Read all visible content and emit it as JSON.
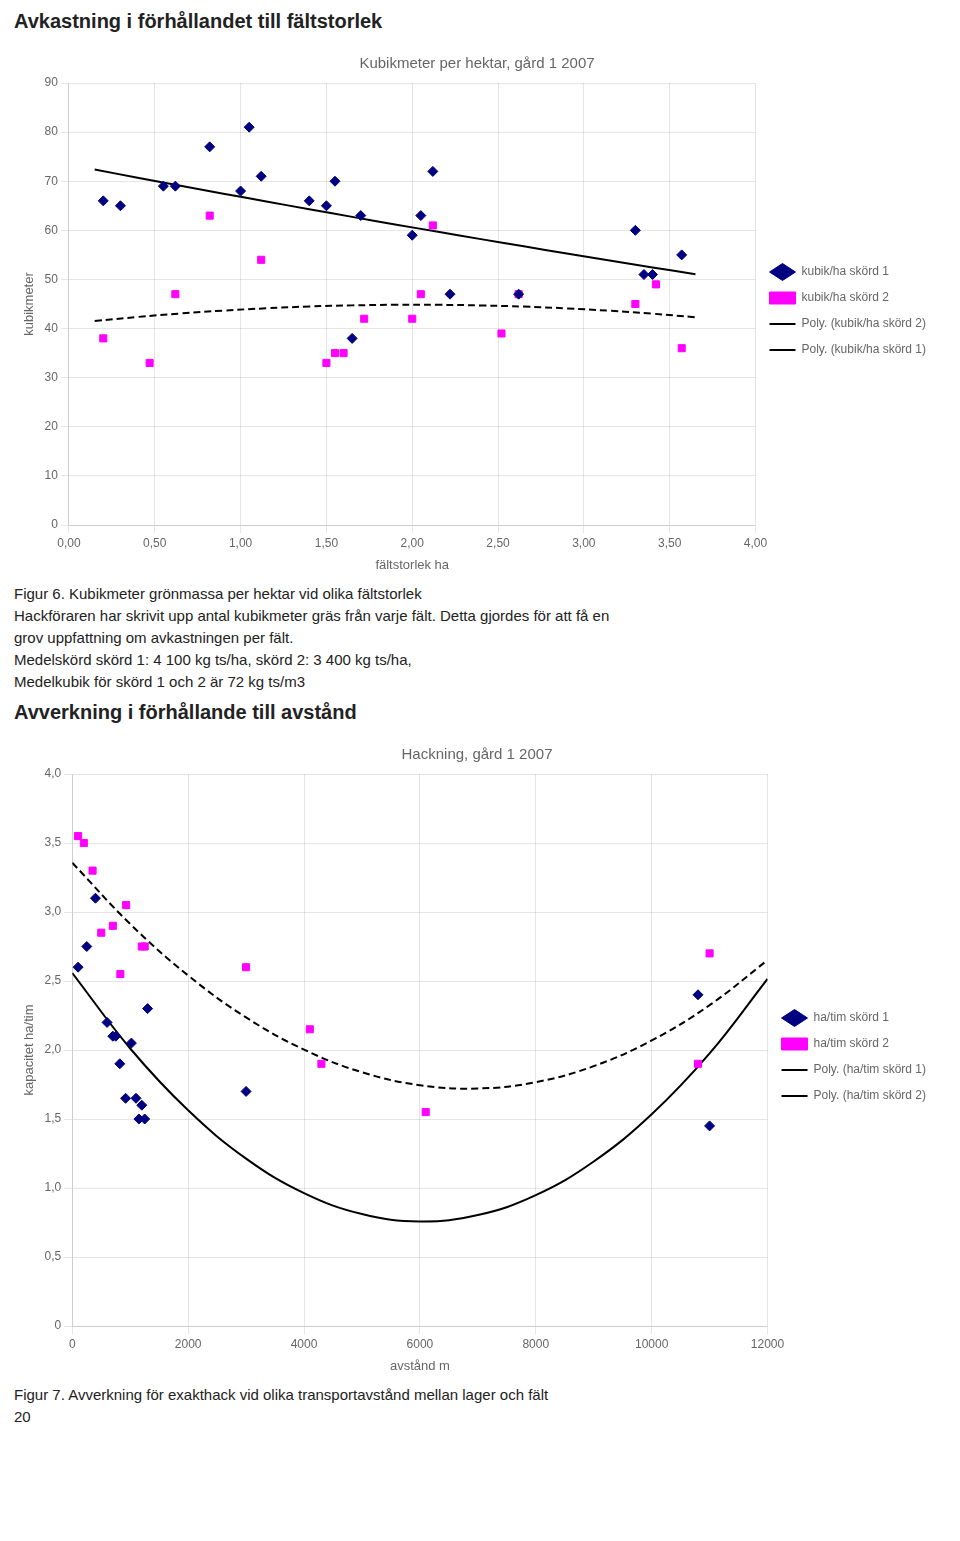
{
  "chart_data": [
    {
      "type": "scatter",
      "title": "Kubikmeter per hektar, gård 1 2007",
      "xlabel": "fältstorlek ha",
      "ylabel": "kubikmeter",
      "xlim": [
        0.0,
        4.0
      ],
      "ylim": [
        0,
        90
      ],
      "xticks": [
        {
          "value": 0.0,
          "label": "0,00"
        },
        {
          "value": 0.5,
          "label": "0,50"
        },
        {
          "value": 1.0,
          "label": "1,00"
        },
        {
          "value": 1.5,
          "label": "1,50"
        },
        {
          "value": 2.0,
          "label": "2,00"
        },
        {
          "value": 2.5,
          "label": "2,50"
        },
        {
          "value": 3.0,
          "label": "3,00"
        },
        {
          "value": 3.5,
          "label": "3,50"
        },
        {
          "value": 4.0,
          "label": "4,00"
        }
      ],
      "yticks": [
        0,
        10,
        20,
        30,
        40,
        50,
        60,
        70,
        80,
        90
      ],
      "grid": true,
      "legend": "right",
      "annotations": [
        "Avkastning i förhållandet till fältstorlek",
        "Figur 6. Kubikmeter grönmassa per hektar vid olika fältstorlek",
        "Hackföraren har skrivit upp antal kubikmeter gräs från varje fält. Detta gjordes för att få en",
        "grov uppfattning om avkastningen per fält.",
        "Medelskörd skörd 1: 4 100 kg ts/ha, skörd 2: 3 400 kg ts/ha,",
        "Medelkubik för skörd 1 och 2 är 72 kg ts/m3"
      ],
      "series": [
        {
          "name": "kubik/ha skörd 1",
          "type": "scatter",
          "marker": "diamond",
          "color": "#000080",
          "x": [
            0.2,
            0.3,
            0.55,
            0.62,
            0.82,
            1.0,
            1.05,
            1.12,
            1.4,
            1.5,
            1.55,
            1.65,
            1.7,
            2.0,
            2.05,
            2.12,
            2.22,
            2.62,
            3.3,
            3.35,
            3.4,
            3.57
          ],
          "values": [
            66,
            65,
            69,
            69,
            77,
            68,
            81,
            71,
            66,
            65,
            70,
            38,
            63,
            59,
            63,
            72,
            47,
            47,
            60,
            51,
            51,
            55
          ]
        },
        {
          "name": "kubik/ha skörd 2",
          "type": "scatter",
          "marker": "square",
          "color": "#FF00FF",
          "x": [
            0.2,
            0.47,
            0.62,
            0.82,
            1.12,
            1.5,
            1.55,
            1.6,
            1.72,
            2.0,
            2.05,
            2.12,
            2.52,
            2.62,
            3.3,
            3.42,
            3.57
          ],
          "values": [
            38,
            33,
            47,
            63,
            54,
            33,
            35,
            35,
            42,
            42,
            47,
            61,
            39,
            47,
            45,
            49,
            36
          ]
        },
        {
          "name": "Poly. (kubik/ha skörd 2)",
          "type": "line",
          "line_style": "dashed",
          "color": "#000000",
          "x": [
            0.15,
            0.4,
            0.65,
            0.9,
            1.15,
            1.4,
            1.65,
            1.9,
            2.15,
            2.4,
            2.65,
            2.9,
            3.15,
            3.4,
            3.65
          ],
          "values": [
            41.53,
            42.36,
            43.07,
            43.66,
            44.13,
            44.49,
            44.72,
            44.84,
            44.83,
            44.71,
            44.47,
            44.11,
            43.63,
            43.03,
            42.31
          ]
        },
        {
          "name": "Poly. (kubik/ha skörd 1)",
          "type": "line",
          "line_style": "solid",
          "color": "#000000",
          "x": [
            0.15,
            0.4,
            0.65,
            0.9,
            1.15,
            1.4,
            1.65,
            1.9,
            2.15,
            2.4,
            2.65,
            2.9,
            3.15,
            3.4,
            3.65
          ],
          "values": [
            72.38,
            70.72,
            69.08,
            67.47,
            65.87,
            64.3,
            62.74,
            61.21,
            59.7,
            58.21,
            56.74,
            55.29,
            53.86,
            52.45,
            51.07
          ]
        }
      ]
    },
    {
      "type": "scatter",
      "title": "Hackning, gård 1 2007",
      "xlabel": "avstånd m",
      "ylabel": "kapacitet ha/tim",
      "xlim": [
        0,
        12000
      ],
      "ylim": [
        0,
        4.0
      ],
      "xticks": [
        0,
        2000,
        4000,
        6000,
        8000,
        10000,
        12000
      ],
      "yticks": [
        0,
        {
          "value": 0.5,
          "label": "0,5"
        },
        {
          "value": 1.0,
          "label": "1,0"
        },
        {
          "value": 1.5,
          "label": "1,5"
        },
        {
          "value": 2.0,
          "label": "2,0"
        },
        {
          "value": 2.5,
          "label": "2,5"
        },
        {
          "value": 3.0,
          "label": "3,0"
        },
        {
          "value": 3.5,
          "label": "3,5"
        },
        {
          "value": 4.0,
          "label": "4,0"
        }
      ],
      "grid": true,
      "legend": "right",
      "annotations": [
        "Avverkning i förhållande till avstånd",
        "Figur 7. Avverkning för exakthack vid olika transportavstånd mellan lager och fält",
        "20"
      ],
      "series": [
        {
          "name": "ha/tim skörd 1",
          "type": "scatter",
          "marker": "diamond",
          "color": "#000080",
          "x": [
            100,
            250,
            400,
            600,
            700,
            750,
            820,
            920,
            1020,
            1100,
            1150,
            1200,
            1250,
            1300,
            3000,
            10800,
            11000
          ],
          "values": [
            2.6,
            2.75,
            3.1,
            2.2,
            2.1,
            2.1,
            1.9,
            1.65,
            2.05,
            1.65,
            1.5,
            1.6,
            1.5,
            2.3,
            1.7,
            2.4,
            1.45
          ]
        },
        {
          "name": "ha/tim skörd 2",
          "type": "scatter",
          "marker": "square",
          "color": "#FF00FF",
          "x": [
            100,
            200,
            350,
            500,
            700,
            830,
            930,
            1200,
            1250,
            3000,
            4100,
            4300,
            6100,
            10800,
            11000
          ],
          "values": [
            3.55,
            3.5,
            3.3,
            2.85,
            2.9,
            2.55,
            3.05,
            2.75,
            2.75,
            2.6,
            2.15,
            1.9,
            1.55,
            1.9,
            2.7
          ]
        },
        {
          "name": "Poly. (ha/tim skörd 1)",
          "type": "line",
          "line_style": "solid",
          "color": "#000000",
          "x": [
            0,
            1000,
            2000,
            3000,
            4000,
            5000,
            6000,
            7000,
            8000,
            9000,
            10000,
            11000,
            12000
          ],
          "values": [
            2.558,
            2.011,
            1.563,
            1.213,
            0.963,
            0.811,
            0.758,
            0.804,
            0.948,
            1.192,
            1.534,
            1.975,
            2.515
          ]
        },
        {
          "name": "Poly. (ha/tim skörd 2)",
          "type": "line",
          "line_style": "dashed",
          "color": "#000000",
          "x": [
            0,
            1000,
            2000,
            3000,
            4000,
            5000,
            6000,
            7000,
            8000,
            9000,
            10000,
            11000,
            12000
          ],
          "values": [
            3.357,
            2.913,
            2.54,
            2.236,
            2.003,
            1.839,
            1.745,
            1.721,
            1.767,
            1.883,
            2.069,
            2.325,
            2.651
          ]
        }
      ]
    }
  ]
}
